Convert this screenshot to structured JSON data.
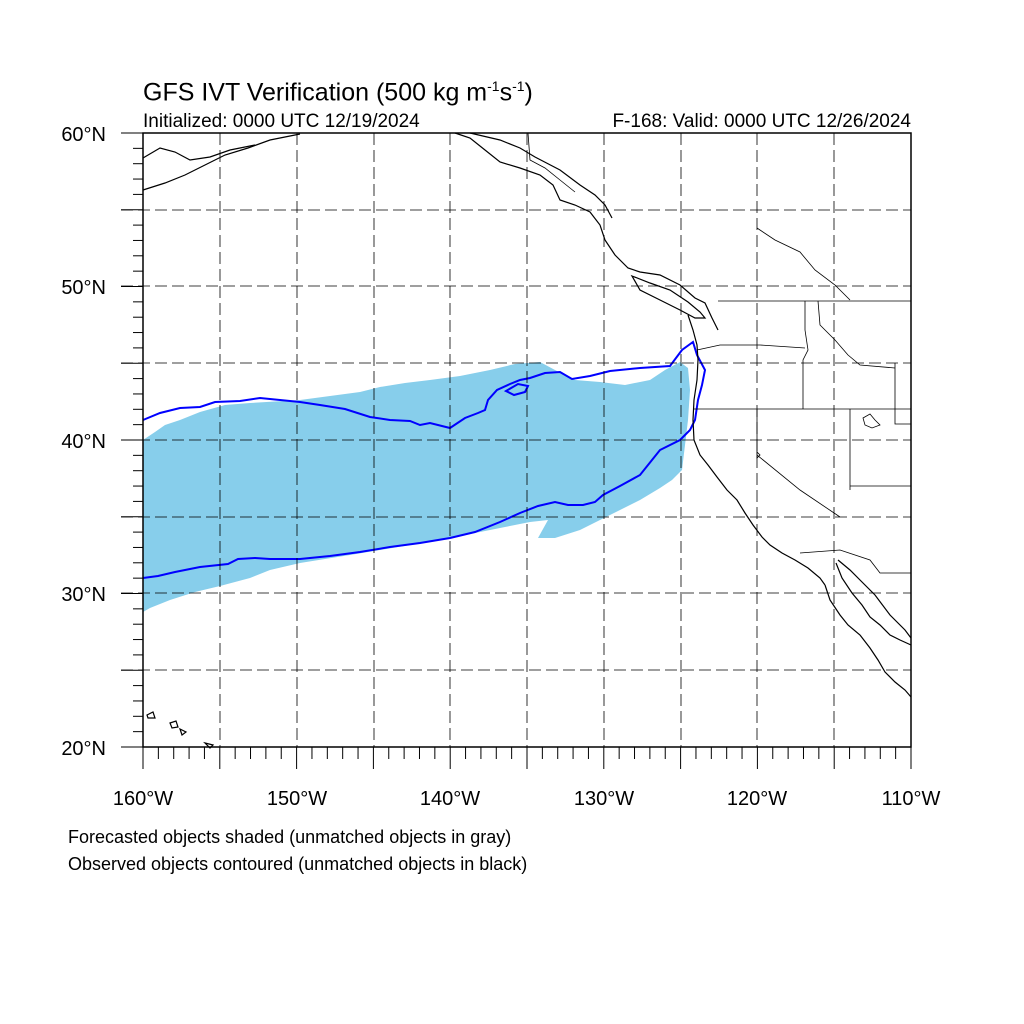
{
  "title": {
    "main": "GFS IVT Verification (500 kg m",
    "sup1": "-1",
    "mid": "s",
    "sup2": "-1",
    "end": ")"
  },
  "initialized": "Initialized: 0000 UTC 12/19/2024",
  "valid": "F-168: Valid: 0000 UTC 12/26/2024",
  "map": {
    "lon_range": [
      -160,
      -110
    ],
    "lat_range": [
      20,
      60
    ],
    "lat_labels": [
      "20°N",
      "30°N",
      "40°N",
      "50°N",
      "60°N"
    ],
    "lon_labels": [
      "160°W",
      "150°W",
      "140°W",
      "130°W",
      "120°W",
      "110°W"
    ],
    "gridlines": "dashed, every 5 degrees",
    "forecast_object_color": "#87CEEB",
    "observed_contour_color": "#0000FF",
    "coastline_color": "#000000"
  },
  "notes": [
    "Forecasted objects shaded (unmatched objects in gray)",
    "Observed objects contoured (unmatched objects in black)"
  ]
}
